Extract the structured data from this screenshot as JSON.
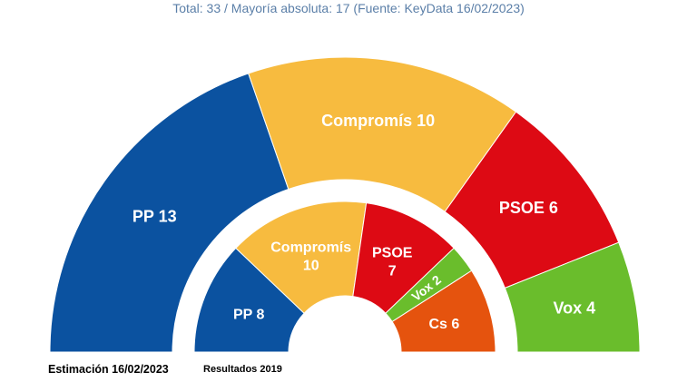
{
  "chart_data": {
    "type": "pie",
    "subtype": "parliament-semicircle",
    "title": "Total: 33 / Mayoría absoluta: 17 (Fuente: KeyData 16/02/2023)",
    "total_seats": 33,
    "majority": 17,
    "rings": [
      {
        "name": "Estimación 16/02/2023",
        "position": "outer",
        "slices": [
          {
            "party": "PP",
            "seats": 13,
            "label": "PP 13",
            "color": "#0b52a0"
          },
          {
            "party": "Compromís",
            "seats": 10,
            "label": "Compromís 10",
            "color": "#f7bb3f"
          },
          {
            "party": "PSOE",
            "seats": 6,
            "label": "PSOE 6",
            "color": "#dd0a14"
          },
          {
            "party": "Vox",
            "seats": 4,
            "label": "Vox 4",
            "color": "#6abd2c"
          }
        ]
      },
      {
        "name": "Resultados 2019",
        "position": "inner",
        "slices": [
          {
            "party": "PP",
            "seats": 8,
            "label": "PP 8",
            "color": "#0b52a0"
          },
          {
            "party": "Compromís",
            "seats": 10,
            "label": "Compromís 10",
            "color": "#f7bb3f"
          },
          {
            "party": "PSOE",
            "seats": 7,
            "label": "PSOE 7",
            "color": "#dd0a14"
          },
          {
            "party": "Vox",
            "seats": 2,
            "label": "Vox 2",
            "color": "#6abd2c"
          },
          {
            "party": "Cs",
            "seats": 6,
            "label": "Cs 6",
            "color": "#e5530e"
          }
        ]
      }
    ]
  }
}
